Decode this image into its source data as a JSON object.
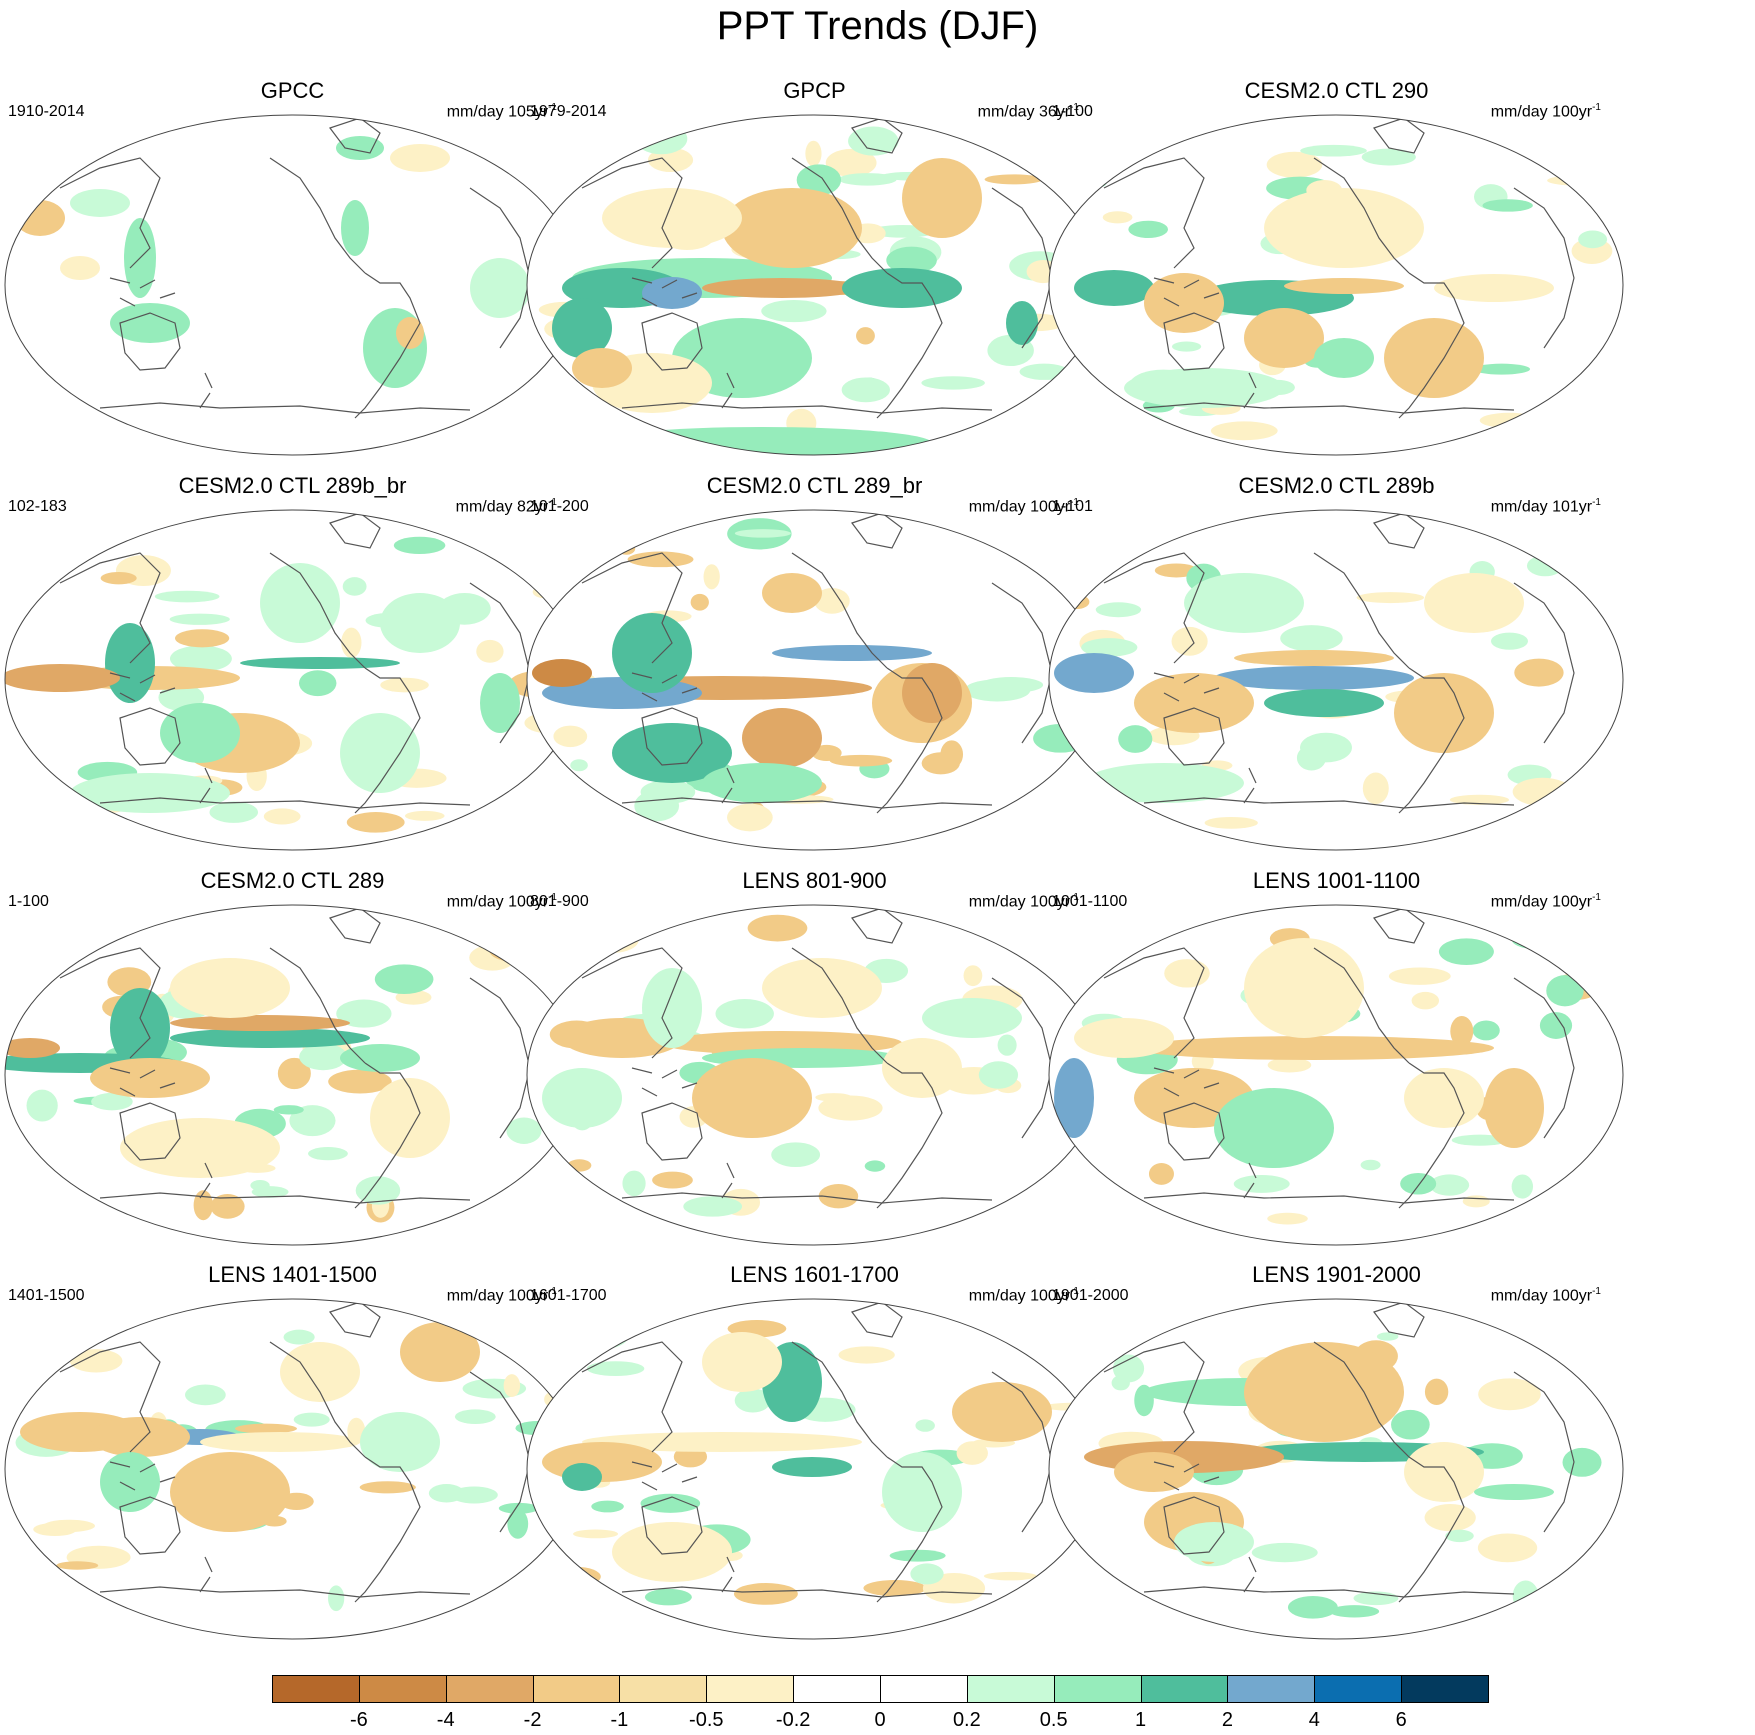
{
  "title": "PPT Trends (DJF)",
  "panels": [
    {
      "title": "GPCC",
      "period": "1910-2014",
      "units": "mm/day 105yr",
      "exp": "-1",
      "pattern": "gpcc"
    },
    {
      "title": "GPCP",
      "period": "1979-2014",
      "units": "mm/day 36yr",
      "exp": "-1",
      "pattern": "gpcp"
    },
    {
      "title": "CESM2.0 CTL 290",
      "period": "1-100",
      "units": "mm/day 100yr",
      "exp": "-1",
      "pattern": "a"
    },
    {
      "title": "CESM2.0 CTL 289b_br",
      "period": "102-183",
      "units": "mm/day 82yr",
      "exp": "-1",
      "pattern": "b"
    },
    {
      "title": "CESM2.0 CTL 289_br",
      "period": "101-200",
      "units": "mm/day 100yr",
      "exp": "-1",
      "pattern": "c"
    },
    {
      "title": "CESM2.0 CTL 289b",
      "period": "1-101",
      "units": "mm/day 101yr",
      "exp": "-1",
      "pattern": "d"
    },
    {
      "title": "CESM2.0 CTL 289",
      "period": "1-100",
      "units": "mm/day 100yr",
      "exp": "-1",
      "pattern": "e"
    },
    {
      "title": "LENS 801-900",
      "period": "801-900",
      "units": "mm/day 100yr",
      "exp": "-1",
      "pattern": "f"
    },
    {
      "title": "LENS 1001-1100",
      "period": "1001-1100",
      "units": "mm/day 100yr",
      "exp": "-1",
      "pattern": "g"
    },
    {
      "title": "LENS 1401-1500",
      "period": "1401-1500",
      "units": "mm/day 100yr",
      "exp": "-1",
      "pattern": "h"
    },
    {
      "title": "LENS 1601-1700",
      "period": "1601-1700",
      "units": "mm/day 100yr",
      "exp": "-1",
      "pattern": "i"
    },
    {
      "title": "LENS 1901-2000",
      "period": "1901-2000",
      "units": "mm/day 100yr",
      "exp": "-1",
      "pattern": "j"
    }
  ],
  "colorbar": {
    "labels": [
      "-6",
      "-4",
      "-2",
      "-1",
      "-0.5",
      "-0.2",
      "0",
      "0.2",
      "0.5",
      "1",
      "2",
      "4",
      "6"
    ],
    "colors": [
      "#b5682a",
      "#cd8a45",
      "#e0a866",
      "#f2cb87",
      "#f7e0a6",
      "#fdf1c6",
      "#ffffff",
      "#ffffff",
      "#c8fad7",
      "#96ecbb",
      "#4fbe9c",
      "#73a8ce",
      "#0b6eb0",
      "#033a5e"
    ]
  },
  "palette": {
    "dry3": "#cd8a45",
    "dry2": "#e0a866",
    "dry1": "#f2cb87",
    "dry0": "#fdf1c6",
    "wet0": "#c8fad7",
    "wet1": "#96ecbb",
    "wet2": "#4fbe9c",
    "wet3": "#73a8ce",
    "wet4": "#0b6eb0"
  }
}
